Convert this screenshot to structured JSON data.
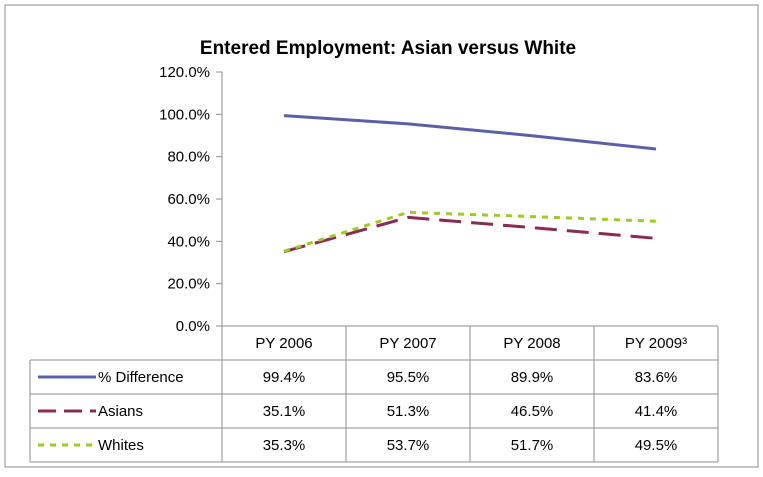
{
  "chart_data": {
    "type": "line",
    "title": "Entered Employment: Asian versus White",
    "categories": [
      "PY 2006",
      "PY 2007",
      "PY 2008",
      "PY 2009³"
    ],
    "y_ticks": [
      "0.0%",
      "20.0%",
      "40.0%",
      "60.0%",
      "80.0%",
      "100.0%",
      "120.0%"
    ],
    "ylim": [
      0,
      120
    ],
    "grid": false,
    "legend": "data-table",
    "series": [
      {
        "name": "% Difference",
        "values": [
          99.4,
          95.5,
          89.9,
          83.6
        ],
        "labels": [
          "99.4%",
          "95.5%",
          "89.9%",
          "83.6%"
        ],
        "color": "#5b5fa8",
        "style": "solid"
      },
      {
        "name": "Asians",
        "values": [
          35.1,
          51.3,
          46.5,
          41.4
        ],
        "labels": [
          "35.1%",
          "51.3%",
          "46.5%",
          "41.4%"
        ],
        "color": "#8b2a52",
        "style": "long-dash"
      },
      {
        "name": "Whites",
        "values": [
          35.3,
          53.7,
          51.7,
          49.5
        ],
        "labels": [
          "35.3%",
          "53.7%",
          "51.7%",
          "49.5%"
        ],
        "color": "#9ccc1e",
        "style": "short-dash"
      }
    ]
  }
}
